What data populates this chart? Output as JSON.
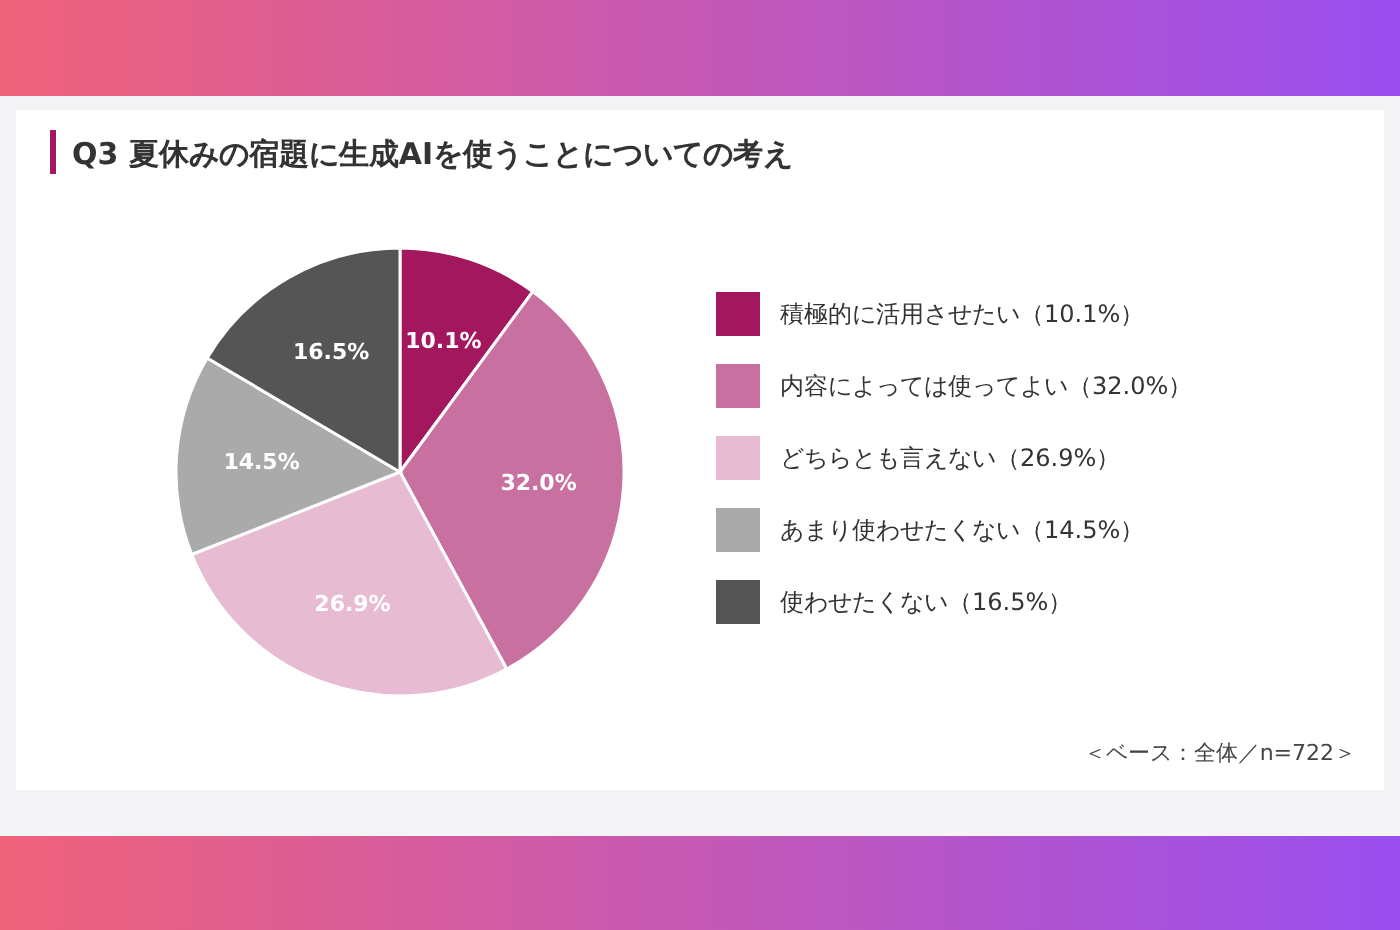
{
  "chart_data": {
    "type": "pie",
    "title": "Q3  夏休みの宿題に生成AIを使うことについての考え",
    "categories": [
      "積極的に活用させたい（10.1%）",
      "内容によっては使ってよい（32.0%）",
      "どちらとも言えない（26.9%）",
      "あまり使わせたくない（14.5%）",
      "使わせたくない（16.5%）"
    ],
    "values": [
      10.1,
      32.0,
      26.9,
      14.5,
      16.5
    ],
    "colors": [
      "#a3175f",
      "#c8709f",
      "#e7bcd2",
      "#aaaaaa",
      "#555555"
    ],
    "value_labels": [
      "10.1%",
      "32.0%",
      "26.9%",
      "14.5%",
      "16.5%"
    ],
    "legend": "right",
    "annotations": [
      "＜ベース：全体／n=722＞"
    ]
  }
}
